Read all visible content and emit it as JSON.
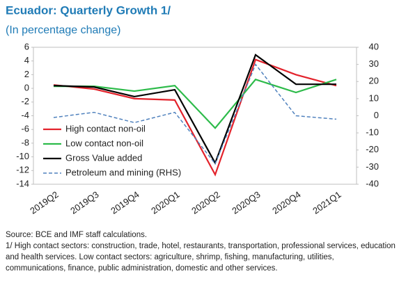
{
  "chart_data": {
    "type": "line",
    "title": "Ecuador: Quarterly Growth 1/",
    "subtitle": "(In percentage change)",
    "categories": [
      "2019Q2",
      "2019Q3",
      "2019Q4",
      "2020Q1",
      "2020Q2",
      "2020Q3",
      "2020Q4",
      "2021Q1"
    ],
    "series": [
      {
        "name": "High contact non-oil",
        "color": "#e3222b",
        "values": [
          0.5,
          -0.1,
          -1.5,
          -1.7,
          -12.6,
          4.2,
          2.0,
          0.4
        ]
      },
      {
        "name": "Low contact non-oil",
        "color": "#2dbb4a",
        "values": [
          0.3,
          0.3,
          -0.4,
          0.4,
          -5.8,
          1.3,
          -0.6,
          1.3
        ]
      },
      {
        "name": "Gross Value added",
        "color": "#000000",
        "values": [
          0.4,
          0.2,
          -1.2,
          -0.2,
          -10.9,
          4.9,
          0.6,
          0.6
        ]
      },
      {
        "name": "Petroleum and mining (RHS)",
        "color": "#4f81bd",
        "dashed": true,
        "axis": "y2",
        "values": [
          -1,
          2,
          -4,
          2,
          -28,
          30,
          0,
          -2
        ]
      }
    ],
    "ylim": [
      -14,
      6
    ],
    "yticks": [
      -14,
      -12,
      -10,
      -8,
      -6,
      -4,
      -2,
      0,
      2,
      4,
      6
    ],
    "y2lim": [
      -40,
      40
    ],
    "y2ticks": [
      -40,
      -30,
      -20,
      -10,
      0,
      10,
      20,
      30,
      40
    ],
    "legend": "lower-left",
    "notes": [
      "Source: BCE and IMF staff calculations.",
      "1/ High contact sectors: construction, trade, hotel, restaurants, transportation, professional services, education and health services. Low contact sectors: agriculture, shrimp, fishing, manufacturing, utilities, communications, finance, public administration, domestic and other services."
    ]
  }
}
